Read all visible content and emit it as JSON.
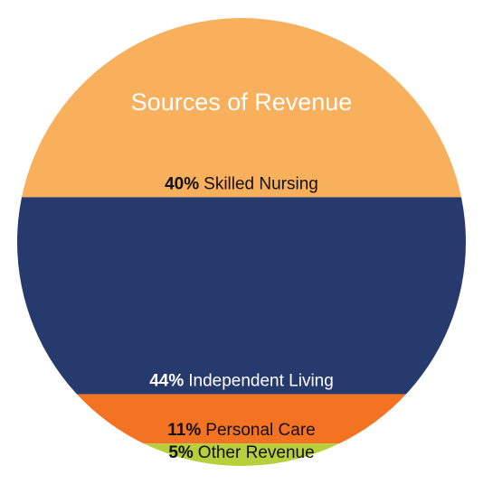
{
  "chart_data": {
    "type": "pie",
    "title": "Sources of Revenue",
    "categories": [
      "Skilled Nursing",
      "Independent Living",
      "Personal Care",
      "Other Revenue"
    ],
    "values": [
      40,
      44,
      11,
      5
    ],
    "value_labels": [
      "40%",
      "44%",
      "11%",
      "5%"
    ],
    "colors": [
      "#f9b05c",
      "#263a6e",
      "#f47322",
      "#b7cf3c"
    ]
  }
}
